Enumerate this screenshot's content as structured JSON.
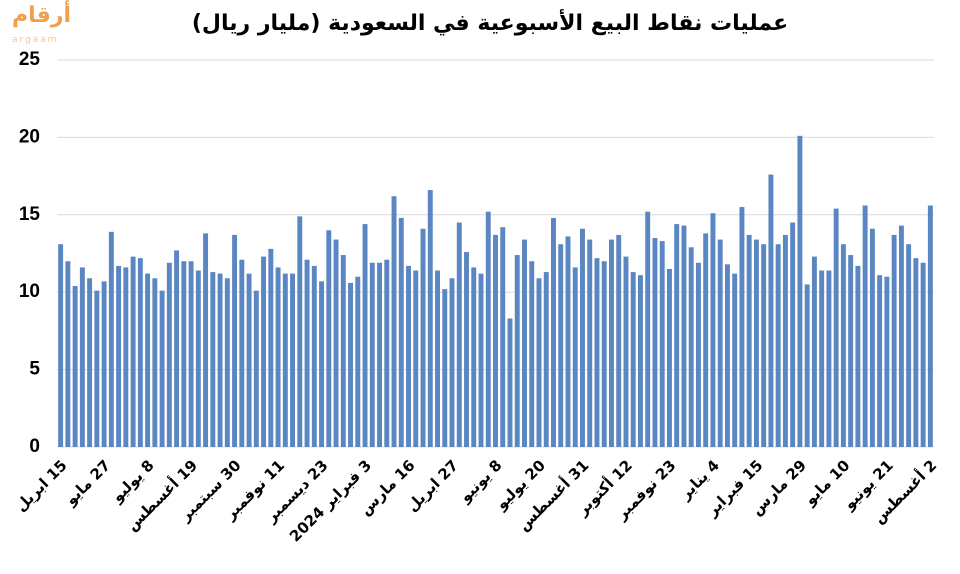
{
  "logo": {
    "name": "أرقام",
    "latin": "argaam"
  },
  "chart_data": {
    "type": "bar",
    "title": "عمليات نقاط البيع الأسبوعية في السعودية (مليار ريال)",
    "categories": [
      "15 ابريل",
      null,
      null,
      null,
      null,
      null,
      "27 مايو",
      null,
      null,
      null,
      null,
      null,
      "8 يوليو",
      null,
      null,
      null,
      null,
      null,
      "19 أغسطس",
      null,
      null,
      null,
      null,
      null,
      "30 سبتمبر",
      null,
      null,
      null,
      null,
      null,
      "11 نوفمبر",
      null,
      null,
      null,
      null,
      null,
      "23 ديسمبر",
      null,
      null,
      null,
      null,
      null,
      "3 فبراير 2024",
      null,
      null,
      null,
      null,
      null,
      "16 مارس",
      null,
      null,
      null,
      null,
      null,
      "27 ابريل",
      null,
      null,
      null,
      null,
      null,
      "8 يونيو",
      null,
      null,
      null,
      null,
      null,
      "20 يوليو",
      null,
      null,
      null,
      null,
      null,
      "31 أغسطس",
      null,
      null,
      null,
      null,
      null,
      "12 أكتوبر",
      null,
      null,
      null,
      null,
      null,
      "23 نوفمبر",
      null,
      null,
      null,
      null,
      null,
      "4 يناير",
      null,
      null,
      null,
      null,
      null,
      "15 فبراير",
      null,
      null,
      null,
      null,
      null,
      "29 مارس",
      null,
      null,
      null,
      null,
      null,
      "10 مايو",
      null,
      null,
      null,
      null,
      null,
      "21 يونيو",
      null,
      null,
      null,
      null,
      null,
      "2 أغسطس"
    ],
    "values": [
      13.1,
      12.0,
      10.4,
      11.6,
      10.9,
      10.1,
      10.7,
      13.9,
      11.7,
      11.6,
      12.3,
      12.2,
      11.2,
      10.9,
      10.1,
      11.9,
      12.7,
      12.0,
      12.0,
      11.4,
      13.8,
      11.3,
      11.2,
      10.9,
      13.7,
      12.1,
      11.2,
      10.1,
      12.3,
      12.8,
      11.6,
      11.2,
      11.2,
      14.9,
      12.1,
      11.7,
      10.7,
      14.0,
      13.4,
      12.4,
      10.6,
      11.0,
      14.4,
      11.9,
      11.9,
      12.1,
      16.2,
      14.8,
      11.7,
      11.4,
      14.1,
      16.6,
      11.4,
      10.2,
      10.9,
      14.5,
      12.6,
      11.6,
      11.2,
      15.2,
      13.7,
      14.2,
      8.3,
      12.4,
      13.4,
      12.0,
      10.9,
      11.3,
      14.8,
      13.1,
      13.6,
      11.6,
      14.1,
      13.4,
      12.2,
      12.0,
      13.4,
      13.7,
      12.3,
      11.3,
      11.1,
      15.2,
      13.5,
      13.3,
      11.5,
      14.4,
      14.3,
      12.9,
      11.9,
      13.8,
      15.1,
      13.4,
      11.8,
      11.2,
      15.5,
      13.7,
      13.4,
      13.1,
      17.6,
      13.1,
      13.7,
      14.5,
      20.1,
      10.5,
      12.3,
      11.4,
      11.4,
      15.4,
      13.1,
      12.4,
      11.7,
      15.6,
      14.1,
      11.1,
      11.0,
      13.7,
      14.3,
      13.1,
      12.2,
      11.9,
      15.6
    ],
    "color": "#5a86c1",
    "ylim": [
      0,
      25
    ],
    "yticks": [
      0,
      5,
      10,
      15,
      20,
      25
    ],
    "grid": true
  }
}
